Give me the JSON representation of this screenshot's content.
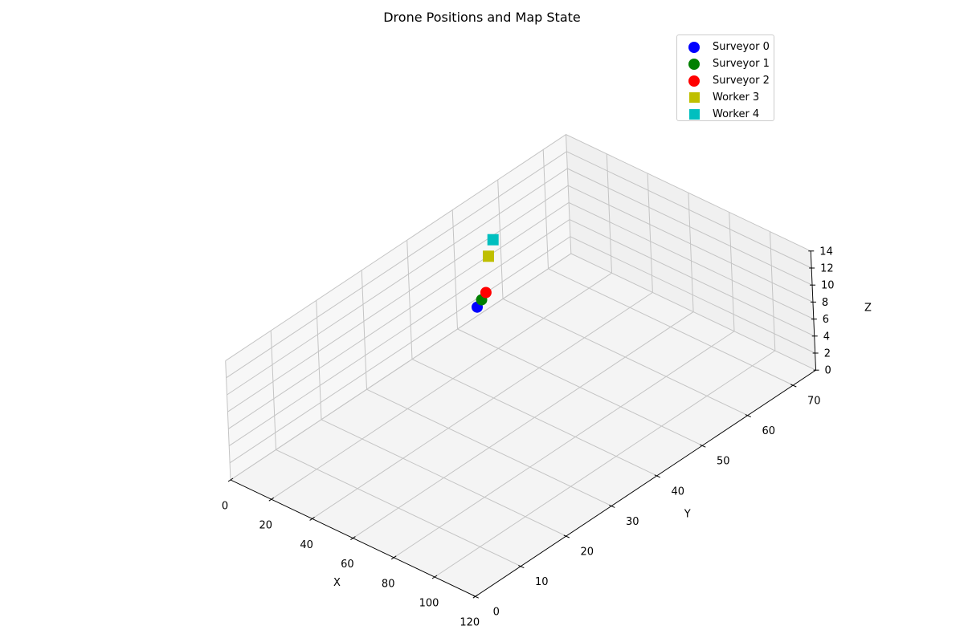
{
  "chart_data": {
    "type": "scatter3d",
    "title": "Drone Positions and Map State",
    "xlabel": "X",
    "ylabel": "Y",
    "zlabel": "Z",
    "xlim": [
      0,
      120
    ],
    "ylim": [
      0,
      75
    ],
    "zlim": [
      0,
      14
    ],
    "xticks": [
      0,
      20,
      40,
      60,
      80,
      100,
      120
    ],
    "yticks": [
      0,
      10,
      20,
      30,
      40,
      50,
      60,
      70
    ],
    "zticks": [
      0,
      2,
      4,
      6,
      8,
      10,
      12,
      14
    ],
    "grid": true,
    "legend_position": "top-right",
    "series": [
      {
        "name": "Surveyor 0",
        "marker": "circle",
        "color": "#0000ff",
        "points": [
          {
            "x": 15,
            "y": 48,
            "z": 5
          }
        ]
      },
      {
        "name": "Surveyor 1",
        "marker": "circle",
        "color": "#008000",
        "points": [
          {
            "x": 15,
            "y": 49,
            "z": 5.5
          }
        ]
      },
      {
        "name": "Surveyor 2",
        "marker": "circle",
        "color": "#ff0000",
        "points": [
          {
            "x": 15,
            "y": 50,
            "z": 6
          }
        ]
      },
      {
        "name": "Worker 3",
        "marker": "square",
        "color": "#bfbf00",
        "points": [
          {
            "x": 17,
            "y": 50,
            "z": 10.5
          }
        ]
      },
      {
        "name": "Worker 4",
        "marker": "square",
        "color": "#00bfbf",
        "points": [
          {
            "x": 15,
            "y": 52,
            "z": 11.5
          }
        ]
      }
    ]
  }
}
